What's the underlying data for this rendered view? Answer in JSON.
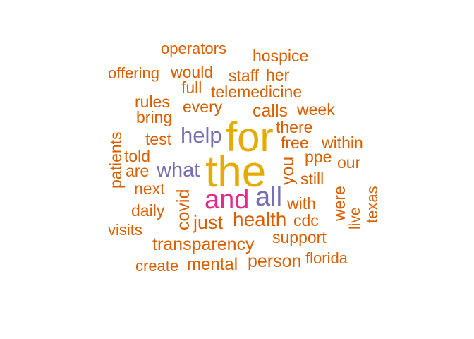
{
  "palette": {
    "orange": "#D95F02",
    "gold": "#E6AB02",
    "purple": "#7570B3",
    "magenta": "#E7298A"
  },
  "words": [
    {
      "text": "operators",
      "color": "orange"
    },
    {
      "text": "hospice",
      "color": "orange"
    },
    {
      "text": "offering",
      "color": "orange"
    },
    {
      "text": "would",
      "color": "orange"
    },
    {
      "text": "staff",
      "color": "orange"
    },
    {
      "text": "her",
      "color": "orange"
    },
    {
      "text": "full",
      "color": "orange"
    },
    {
      "text": "telemedicine",
      "color": "orange"
    },
    {
      "text": "rules",
      "color": "orange"
    },
    {
      "text": "every",
      "color": "orange"
    },
    {
      "text": "calls",
      "color": "orange"
    },
    {
      "text": "week",
      "color": "orange"
    },
    {
      "text": "bring",
      "color": "orange"
    },
    {
      "text": "there",
      "color": "orange"
    },
    {
      "text": "for",
      "color": "gold"
    },
    {
      "text": "help",
      "color": "purple"
    },
    {
      "text": "test",
      "color": "orange"
    },
    {
      "text": "free",
      "color": "orange"
    },
    {
      "text": "within",
      "color": "orange"
    },
    {
      "text": "patients",
      "color": "orange"
    },
    {
      "text": "told",
      "color": "orange"
    },
    {
      "text": "the",
      "color": "gold"
    },
    {
      "text": "you",
      "color": "orange"
    },
    {
      "text": "ppe",
      "color": "orange"
    },
    {
      "text": "our",
      "color": "orange"
    },
    {
      "text": "are",
      "color": "orange"
    },
    {
      "text": "what",
      "color": "purple"
    },
    {
      "text": "still",
      "color": "orange"
    },
    {
      "text": "next",
      "color": "orange"
    },
    {
      "text": "covid",
      "color": "orange"
    },
    {
      "text": "were",
      "color": "orange"
    },
    {
      "text": "and",
      "color": "magenta"
    },
    {
      "text": "all",
      "color": "purple"
    },
    {
      "text": "texas",
      "color": "orange"
    },
    {
      "text": "daily",
      "color": "orange"
    },
    {
      "text": "with",
      "color": "orange"
    },
    {
      "text": "live",
      "color": "orange"
    },
    {
      "text": "health",
      "color": "orange"
    },
    {
      "text": "cdc",
      "color": "orange"
    },
    {
      "text": "just",
      "color": "orange"
    },
    {
      "text": "visits",
      "color": "orange"
    },
    {
      "text": "support",
      "color": "orange"
    },
    {
      "text": "transparency",
      "color": "orange"
    },
    {
      "text": "person",
      "color": "orange"
    },
    {
      "text": "florida",
      "color": "orange"
    },
    {
      "text": "create",
      "color": "orange"
    },
    {
      "text": "mental",
      "color": "orange"
    }
  ]
}
